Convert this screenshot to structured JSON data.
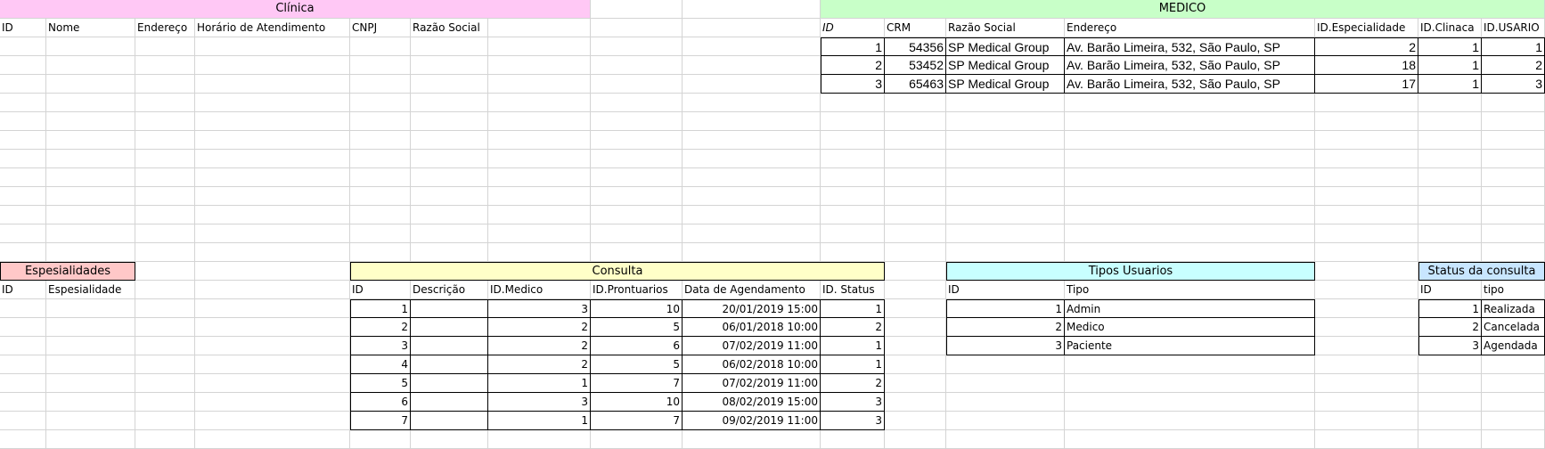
{
  "colors": {
    "clinica_header": "#ffc8f5",
    "medico_header": "#c8ffc8",
    "especialidades_header": "#ffc8c8",
    "consulta_header": "#ffffc8",
    "tipos_header": "#c8ffff",
    "status_header": "#c8e6ff"
  },
  "clinica": {
    "title": "Clínica",
    "headers": [
      "ID",
      "Nome",
      "Endereço",
      "Horário de Atendimento",
      "CNPJ",
      "Razão Social"
    ]
  },
  "medico": {
    "title": "MEDICO",
    "headers": [
      "ID",
      "CRM",
      "Razão Social",
      "Endereço",
      "ID.Especialidade",
      "ID.Clinaca",
      "ID.USARIO"
    ],
    "rows": [
      [
        "1",
        "54356",
        "SP Medical Group",
        "Av. Barão Limeira, 532, São Paulo, SP",
        "2",
        "1",
        "1"
      ],
      [
        "2",
        "53452",
        "SP Medical Group",
        "Av. Barão Limeira, 532, São Paulo, SP",
        "18",
        "1",
        "2"
      ],
      [
        "3",
        "65463",
        "SP Medical Group",
        "Av. Barão Limeira, 532, São Paulo, SP",
        "17",
        "1",
        "3"
      ]
    ]
  },
  "especialidades": {
    "title": "Espesialidades",
    "headers": [
      "ID",
      "Espesialidade"
    ]
  },
  "consulta": {
    "title": "Consulta",
    "headers": [
      "ID",
      "Descrição",
      "ID.Medico",
      "ID.Prontuarios",
      "Data de Agendamento",
      "ID. Status"
    ],
    "rows": [
      [
        "1",
        "",
        "3",
        "10",
        "20/01/2019 15:00",
        "1"
      ],
      [
        "2",
        "",
        "2",
        "5",
        "06/01/2018 10:00",
        "2"
      ],
      [
        "3",
        "",
        "2",
        "6",
        "07/02/2019 11:00",
        "1"
      ],
      [
        "4",
        "",
        "2",
        "5",
        "06/02/2018 10:00",
        "1"
      ],
      [
        "5",
        "",
        "1",
        "7",
        "07/02/2019 11:00",
        "2"
      ],
      [
        "6",
        "",
        "3",
        "10",
        "08/02/2019 15:00",
        "3"
      ],
      [
        "7",
        "",
        "1",
        "7",
        "09/02/2019 11:00",
        "3"
      ]
    ]
  },
  "tipos_usuarios": {
    "title": "Tipos Usuarios",
    "headers": [
      "ID",
      "Tipo"
    ],
    "rows": [
      [
        "1",
        "Admin"
      ],
      [
        "2",
        "Medico"
      ],
      [
        "3",
        "Paciente"
      ]
    ]
  },
  "status_consulta": {
    "title": "Status da consulta",
    "headers": [
      "ID",
      "tipo"
    ],
    "rows": [
      [
        "1",
        "Realizada"
      ],
      [
        "2",
        "Cancelada"
      ],
      [
        "3",
        "Agendada"
      ]
    ]
  }
}
